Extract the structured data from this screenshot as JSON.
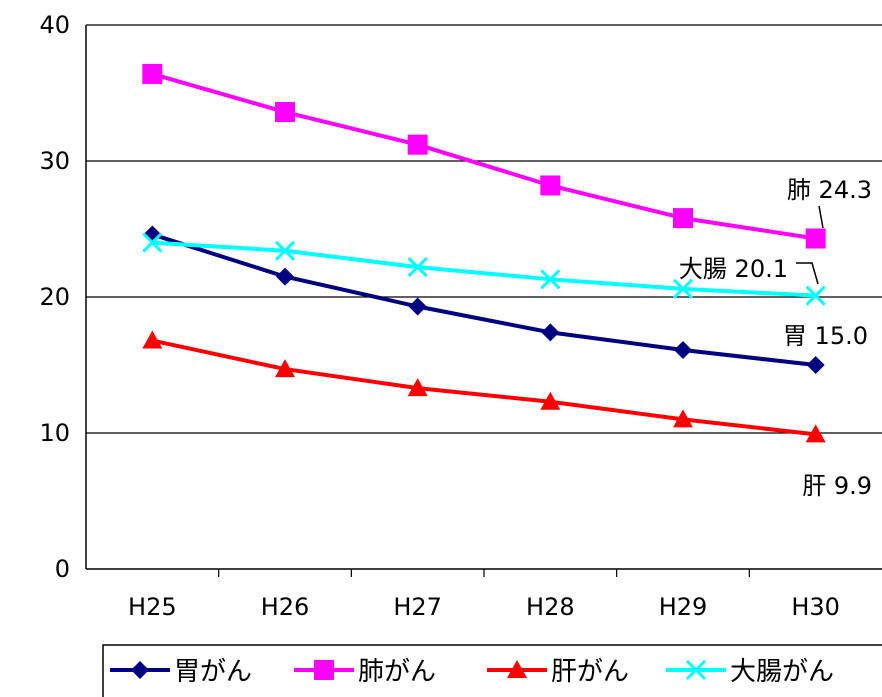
{
  "chart_data": {
    "type": "line",
    "categories": [
      "H25",
      "H26",
      "H27",
      "H28",
      "H29",
      "H30"
    ],
    "ylim": [
      0,
      40
    ],
    "yticks": [
      0,
      10,
      20,
      30,
      40
    ],
    "grid": true,
    "legend_position": "bottom",
    "series": [
      {
        "name": "胃がん",
        "color": "#000080",
        "marker": "diamond",
        "values": [
          24.6,
          21.5,
          19.3,
          17.4,
          16.1,
          15.0
        ]
      },
      {
        "name": "肺がん",
        "color": "#FF00FF",
        "marker": "square",
        "values": [
          36.4,
          33.6,
          31.2,
          28.2,
          25.8,
          24.3
        ]
      },
      {
        "name": "肝がん",
        "color": "#FF0000",
        "marker": "triangle",
        "values": [
          16.8,
          14.7,
          13.3,
          12.3,
          11.0,
          9.9
        ]
      },
      {
        "name": "大腸がん",
        "color": "#00FFFF",
        "marker": "x",
        "values": [
          24.0,
          23.4,
          22.2,
          21.3,
          20.6,
          20.1
        ]
      }
    ],
    "annotations": [
      {
        "series": 1,
        "text": "肺 24.3"
      },
      {
        "series": 3,
        "text": "大腸 20.1"
      },
      {
        "series": 0,
        "text": "胃 15.0"
      },
      {
        "series": 2,
        "text": "肝 9.9"
      }
    ]
  }
}
